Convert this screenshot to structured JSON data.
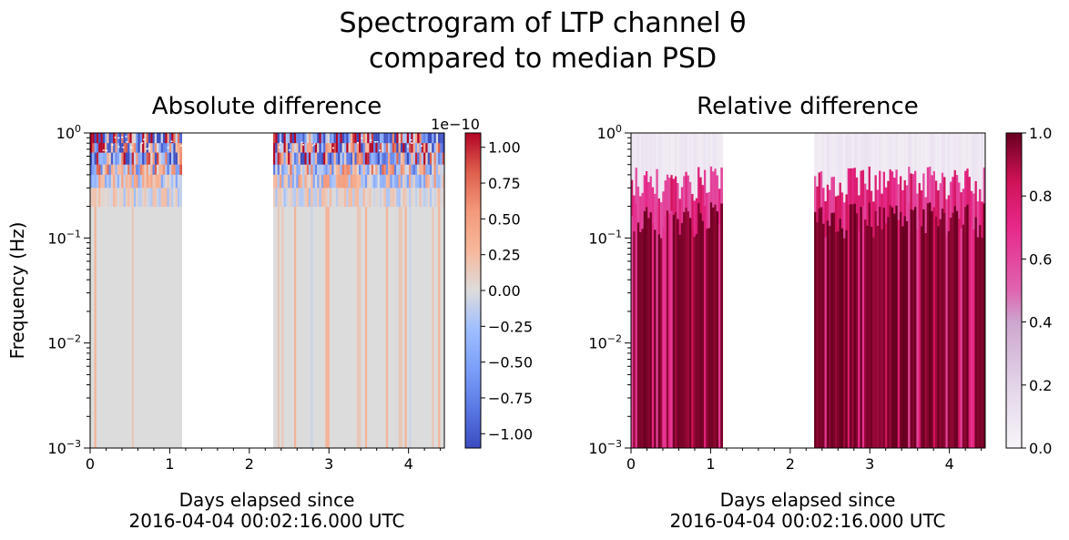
{
  "figure": {
    "suptitle_line1": "Spectrogram of LTP channel θ",
    "suptitle_line2": "compared to median PSD"
  },
  "chart_data": [
    {
      "type": "heatmap",
      "title": "Absolute difference",
      "xlabel_line1": "Days elapsed since",
      "xlabel_line2": "2016-04-04 00:02:16.000 UTC",
      "ylabel": "Frequency (Hz)",
      "xlim": [
        0,
        4.45
      ],
      "ylim": [
        0.001,
        1
      ],
      "yscale": "log",
      "x_ticks": [
        0,
        1,
        2,
        3,
        4
      ],
      "y_ticks": [
        {
          "value": 0.001,
          "base": "10",
          "exp": "−3"
        },
        {
          "value": 0.01,
          "base": "10",
          "exp": "−2"
        },
        {
          "value": 0.1,
          "base": "10",
          "exp": "−1"
        },
        {
          "value": 1,
          "base": "10",
          "exp": "0"
        }
      ],
      "data_segments": [
        [
          0,
          1.15
        ],
        [
          2.3,
          4.45
        ]
      ],
      "gap": [
        1.15,
        2.3
      ],
      "colormap": "coolwarm",
      "colorbar": {
        "range": [
          -1.1e-10,
          1.1e-10
        ],
        "offset_label": "1e−10",
        "ticks": [
          -1.0,
          -0.75,
          -0.5,
          -0.25,
          0.0,
          0.25,
          0.5,
          0.75,
          1.0
        ],
        "tick_labels": [
          "−1.00",
          "−0.75",
          "−0.50",
          "−0.25",
          "0.00",
          "0.25",
          "0.50",
          "0.75",
          "1.00"
        ]
      }
    },
    {
      "type": "heatmap",
      "title": "Relative difference",
      "xlabel_line1": "Days elapsed since",
      "xlabel_line2": "2016-04-04 00:02:16.000 UTC",
      "ylabel": "",
      "xlim": [
        0,
        4.45
      ],
      "ylim": [
        0.001,
        1
      ],
      "yscale": "log",
      "x_ticks": [
        0,
        1,
        2,
        3,
        4
      ],
      "y_ticks": [
        {
          "value": 0.001,
          "base": "10",
          "exp": "−3"
        },
        {
          "value": 0.01,
          "base": "10",
          "exp": "−2"
        },
        {
          "value": 0.1,
          "base": "10",
          "exp": "−1"
        },
        {
          "value": 1,
          "base": "10",
          "exp": "0"
        }
      ],
      "data_segments": [
        [
          0,
          1.15
        ],
        [
          2.3,
          4.45
        ]
      ],
      "gap": [
        1.15,
        2.3
      ],
      "colormap": "PuRd",
      "colorbar": {
        "range": [
          0,
          1
        ],
        "offset_label": "",
        "ticks": [
          0.0,
          0.2,
          0.4,
          0.6,
          0.8,
          1.0
        ],
        "tick_labels": [
          "0.0",
          "0.2",
          "0.4",
          "0.6",
          "0.8",
          "1.0"
        ]
      }
    }
  ]
}
